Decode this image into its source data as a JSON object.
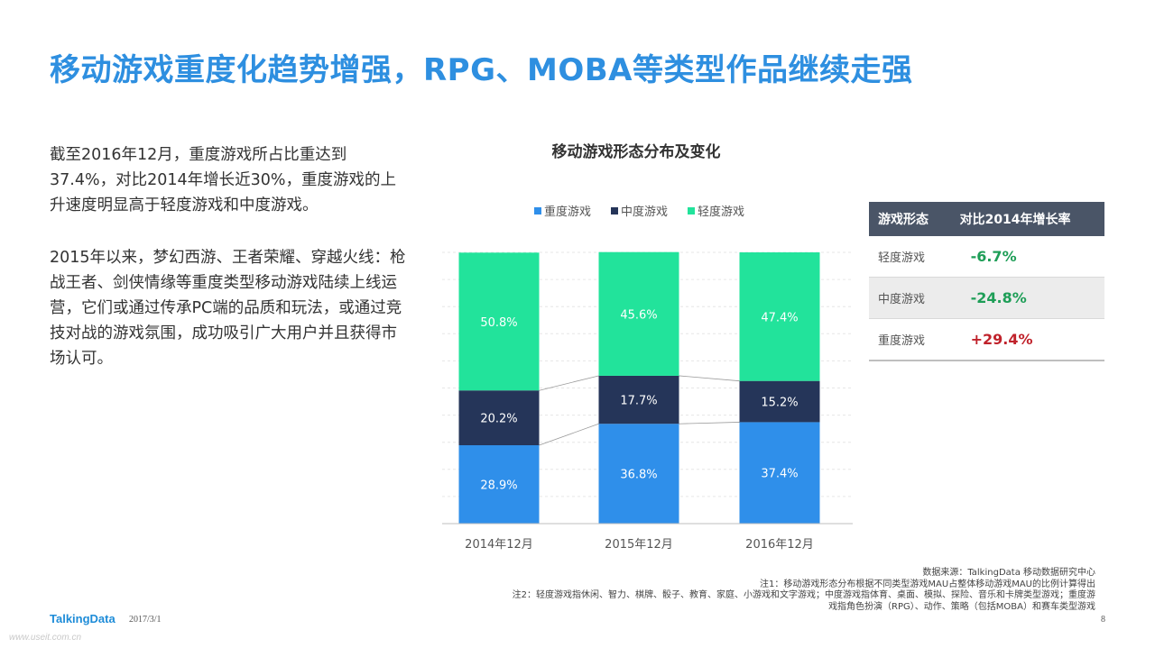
{
  "page_title": "移动游戏重度化趋势增强，RPG、MOBA等类型作品继续走强",
  "paragraphs": [
    "截至2016年12月，重度游戏所占比重达到37.4%，对比2014年增长近30%，重度游戏的上升速度明显高于轻度游戏和中度游戏。",
    "2015年以来，梦幻西游、王者荣耀、穿越火线：枪战王者、剑侠情缘等重度类型移动游戏陆续上线运营，它们或通过传承PC端的品质和玩法，或通过竞技对战的游戏氛围，成功吸引广大用户并且获得市场认可。"
  ],
  "chart_data": {
    "type": "bar",
    "stacked": true,
    "title": "移动游戏形态分布及变化",
    "categories": [
      "2014年12月",
      "2015年12月",
      "2016年12月"
    ],
    "series": [
      {
        "name": "重度游戏",
        "values": [
          28.9,
          36.8,
          37.4
        ],
        "labels": [
          "28.9%",
          "36.8%",
          "37.4%"
        ],
        "color": "#2F8FEA"
      },
      {
        "name": "中度游戏",
        "values": [
          20.2,
          17.7,
          15.2
        ],
        "labels": [
          "20.2%",
          "17.7%",
          "15.2%"
        ],
        "color": "#253559"
      },
      {
        "name": "轻度游戏",
        "values": [
          50.8,
          45.6,
          47.4
        ],
        "labels": [
          "50.8%",
          "45.6%",
          "47.4%"
        ],
        "color": "#22E39B"
      }
    ],
    "ylim": [
      0,
      100
    ],
    "grid": true,
    "legend": "top"
  },
  "table": {
    "headers": [
      "游戏形态",
      "对比2014年增长率"
    ],
    "rows": [
      {
        "name": "轻度游戏",
        "value": "-6.7%",
        "color": "#1E9E57"
      },
      {
        "name": "中度游戏",
        "value": "-24.8%",
        "color": "#1E9E57"
      },
      {
        "name": "重度游戏",
        "value": "+29.4%",
        "color": "#C0222B"
      }
    ]
  },
  "footer": {
    "source": "数据来源：TalkingData 移动数据研究中心",
    "note1": "注1：移动游戏形态分布根据不同类型游戏MAU占整体移动游戏MAU的比例计算得出",
    "note2_line1": "注2：轻度游戏指休闲、智力、棋牌、骰子、教育、家庭、小游戏和文字游戏；中度游戏指体育、桌面、模拟、探险、音乐和卡牌类型游戏；重度游",
    "note2_line2": "戏指角色扮演（RPG）、动作、策略（包括MOBA）和赛车类型游戏",
    "logo": "TalkingData",
    "date": "2017/3/1",
    "page_number": "8",
    "watermark": "www.useit.com.cn"
  }
}
